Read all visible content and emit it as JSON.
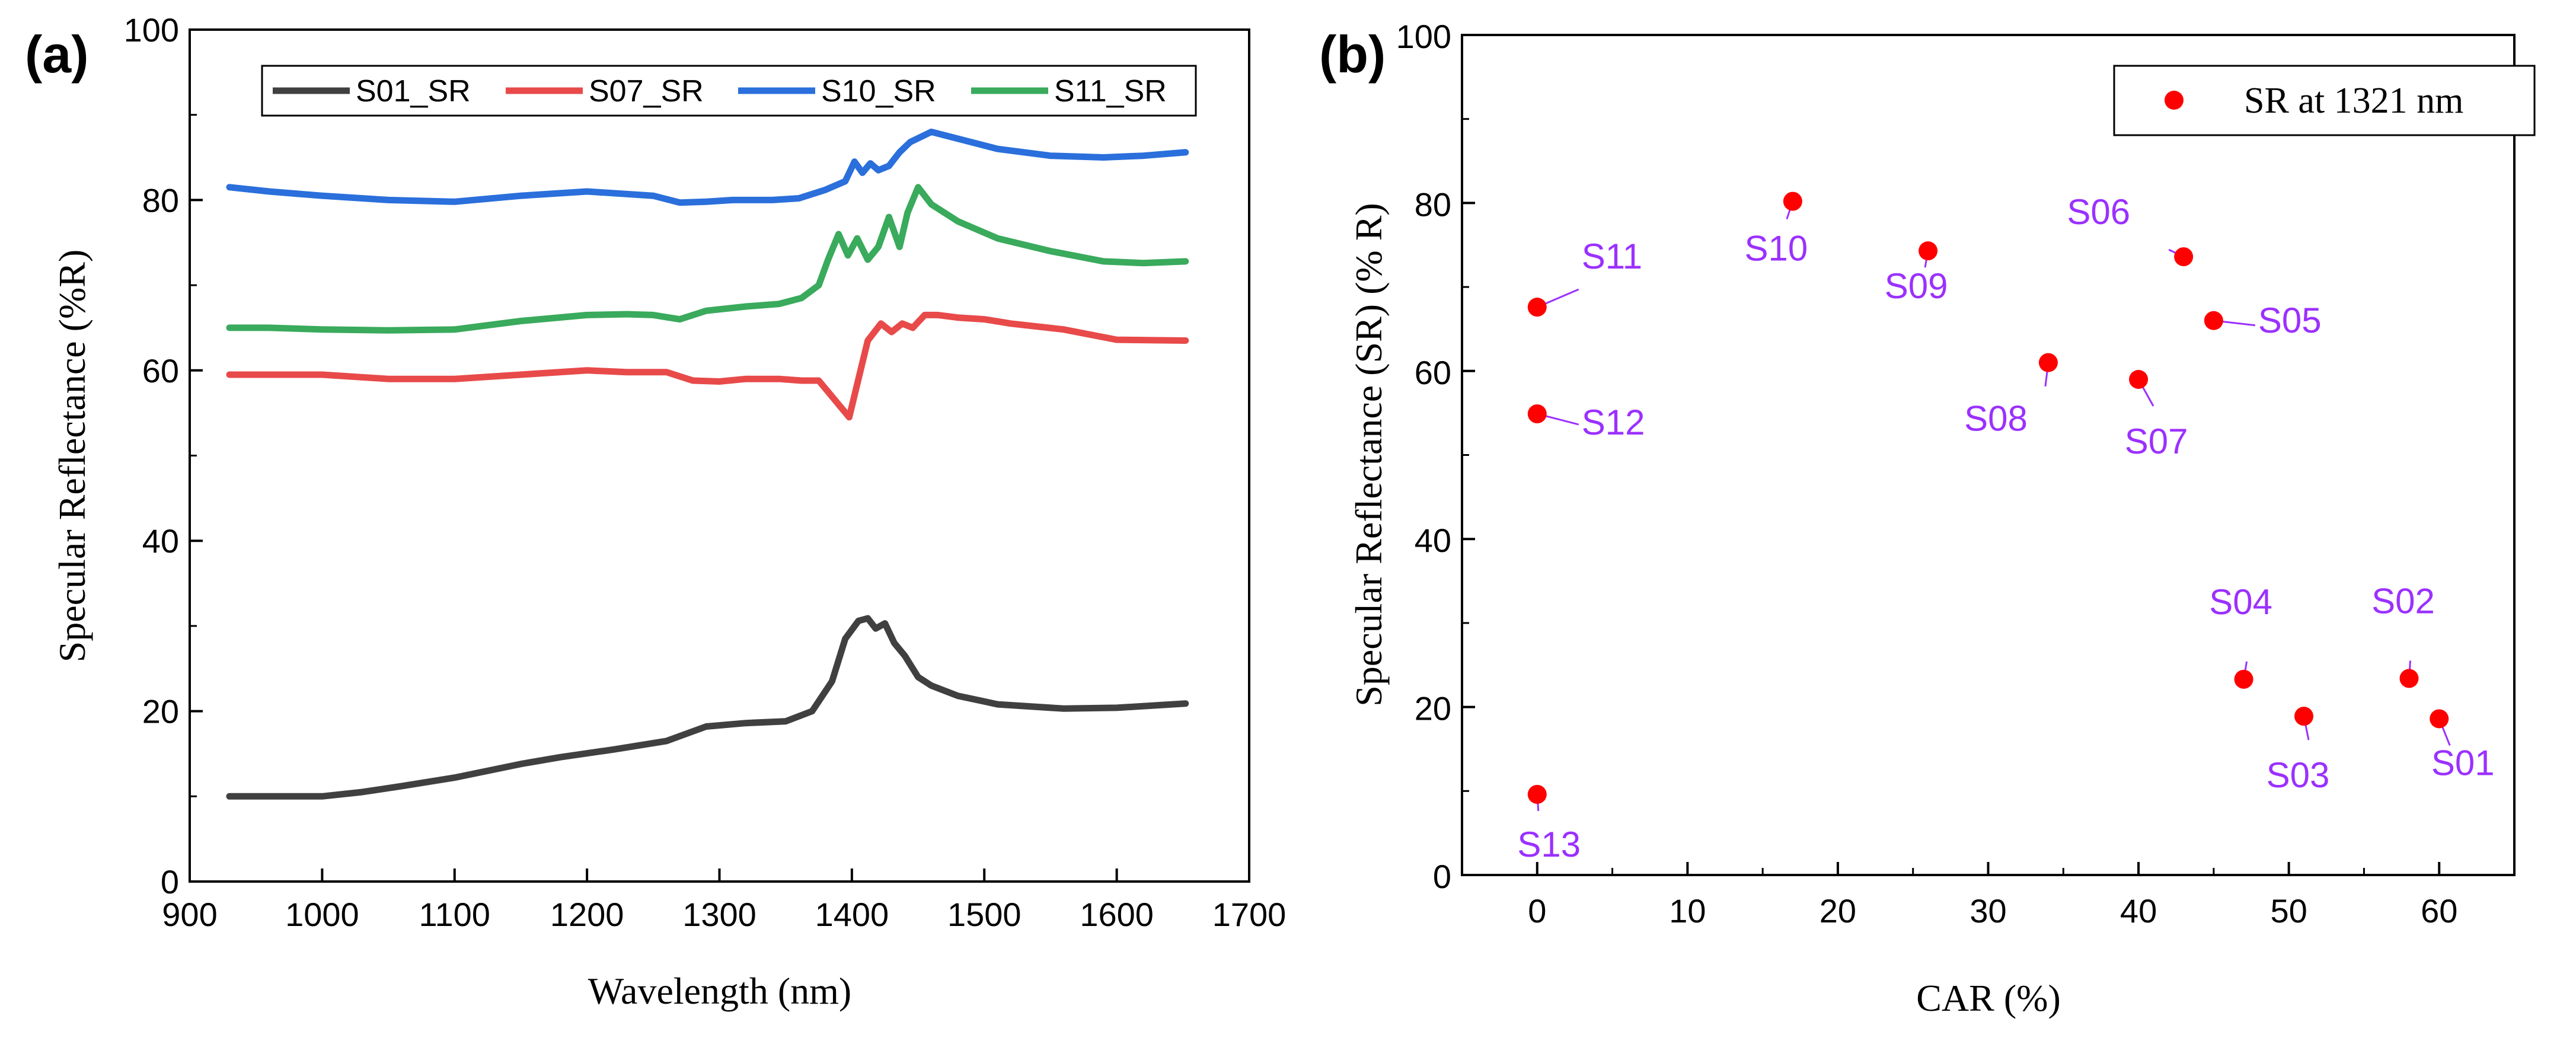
{
  "chart_data": [
    {
      "panel": "(a)",
      "type": "line",
      "title": "",
      "xlabel": "Wavelength (nm)",
      "ylabel": "Specular Reflectance (%R)",
      "xlim": [
        900,
        1700
      ],
      "ylim": [
        0,
        100
      ],
      "xticks": [
        900,
        1000,
        1100,
        1200,
        1300,
        1400,
        1500,
        1600,
        1700
      ],
      "yticks": [
        0,
        20,
        40,
        60,
        80,
        100
      ],
      "legend_position": "top",
      "series": [
        {
          "name": "S01_SR",
          "color": "#404040",
          "x": [
            930,
            960,
            1000,
            1030,
            1060,
            1100,
            1150,
            1180,
            1220,
            1260,
            1290,
            1320,
            1350,
            1370,
            1385,
            1395,
            1405,
            1412,
            1418,
            1425,
            1432,
            1440,
            1450,
            1460,
            1480,
            1510,
            1560,
            1600,
            1652
          ],
          "values": [
            10,
            10,
            10,
            10.5,
            11.2,
            12.2,
            13.8,
            14.6,
            15.5,
            16.5,
            18.2,
            18.6,
            18.8,
            20,
            23.5,
            28.5,
            30.6,
            30.9,
            29.7,
            30.3,
            28,
            26.5,
            24,
            23,
            21.8,
            20.8,
            20.3,
            20.4,
            20.9
          ]
        },
        {
          "name": "S07_SR",
          "color": "#e84a4a",
          "x": [
            930,
            960,
            1000,
            1050,
            1100,
            1150,
            1200,
            1230,
            1260,
            1280,
            1300,
            1320,
            1345,
            1362,
            1375,
            1390,
            1398,
            1405,
            1412,
            1422,
            1430,
            1438,
            1446,
            1455,
            1465,
            1480,
            1500,
            1520,
            1560,
            1600,
            1652
          ],
          "values": [
            59.5,
            59.5,
            59.5,
            59,
            59,
            59.5,
            60,
            59.8,
            59.8,
            58.8,
            58.7,
            59,
            59,
            58.8,
            58.8,
            56,
            54.5,
            59,
            63.5,
            65.5,
            64.5,
            65.5,
            65,
            66.5,
            66.5,
            66.2,
            66,
            65.5,
            64.8,
            63.6,
            63.5
          ]
        },
        {
          "name": "S10_SR",
          "color": "#2a6fdb",
          "x": [
            930,
            960,
            1000,
            1050,
            1100,
            1150,
            1200,
            1250,
            1270,
            1290,
            1310,
            1340,
            1360,
            1380,
            1395,
            1402,
            1408,
            1414,
            1420,
            1428,
            1436,
            1444,
            1452,
            1460,
            1480,
            1510,
            1550,
            1590,
            1620,
            1652
          ],
          "values": [
            81.5,
            81,
            80.5,
            80,
            79.8,
            80.5,
            81,
            80.5,
            79.7,
            79.8,
            80,
            80,
            80.2,
            81.2,
            82.2,
            84.5,
            83.2,
            84.3,
            83.5,
            84,
            85.6,
            86.8,
            87.4,
            88,
            87.2,
            86,
            85.2,
            85,
            85.2,
            85.6
          ]
        },
        {
          "name": "S11_SR",
          "color": "#3aaa5c",
          "x": [
            930,
            960,
            1000,
            1050,
            1100,
            1150,
            1200,
            1230,
            1250,
            1270,
            1290,
            1320,
            1345,
            1362,
            1375,
            1382,
            1390,
            1397,
            1404,
            1412,
            1420,
            1428,
            1436,
            1442,
            1450,
            1460,
            1480,
            1510,
            1550,
            1590,
            1620,
            1652
          ],
          "values": [
            65,
            65,
            64.8,
            64.7,
            64.8,
            65.8,
            66.5,
            66.6,
            66.5,
            66,
            67,
            67.5,
            67.8,
            68.5,
            70,
            73,
            76,
            73.5,
            75.5,
            73,
            74.5,
            78,
            74.5,
            78.5,
            81.5,
            79.5,
            77.5,
            75.5,
            74,
            72.8,
            72.6,
            72.8
          ]
        }
      ]
    },
    {
      "panel": "(b)",
      "type": "scatter",
      "title": "",
      "xlabel": "CAR (%)",
      "ylabel": "Specular Reflectance (SR) (% R)",
      "xlim": [
        -5,
        65
      ],
      "ylim": [
        0,
        100
      ],
      "xticks": [
        0,
        10,
        20,
        30,
        40,
        50,
        60
      ],
      "yticks": [
        0,
        20,
        40,
        60,
        80,
        100
      ],
      "legend_position": "top-right",
      "series": [
        {
          "name": "SR at 1321 nm",
          "color": "#ff0000",
          "label_color": "#9b30ff",
          "points": [
            {
              "label": "S01",
              "x": 60,
              "y": 18.6
            },
            {
              "label": "S02",
              "x": 58,
              "y": 23.4
            },
            {
              "label": "S03",
              "x": 51,
              "y": 18.9
            },
            {
              "label": "S04",
              "x": 47,
              "y": 23.3
            },
            {
              "label": "S05",
              "x": 45,
              "y": 66
            },
            {
              "label": "S06",
              "x": 43,
              "y": 73.6
            },
            {
              "label": "S07",
              "x": 40,
              "y": 59
            },
            {
              "label": "S08",
              "x": 34,
              "y": 61
            },
            {
              "label": "S09",
              "x": 26,
              "y": 74.3
            },
            {
              "label": "S10",
              "x": 17,
              "y": 80.2
            },
            {
              "label": "S11",
              "x": 0,
              "y": 67.6
            },
            {
              "label": "S12",
              "x": 0,
              "y": 54.9
            },
            {
              "label": "S13",
              "x": 0,
              "y": 9.6
            }
          ]
        }
      ]
    }
  ]
}
